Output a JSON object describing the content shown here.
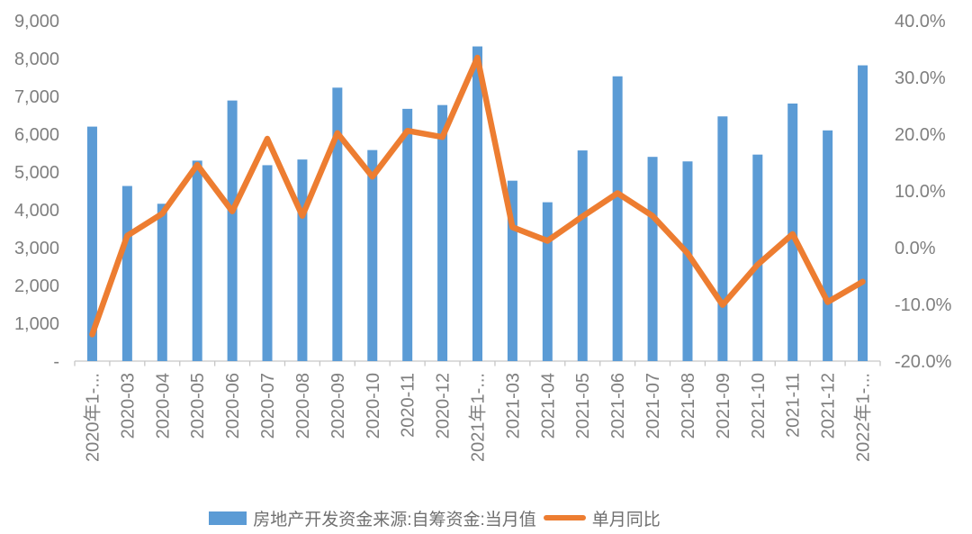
{
  "chart_data": {
    "type": "combo",
    "subtype": "bar+line",
    "categories": [
      "2020年1-...",
      "2020-03",
      "2020-04",
      "2020-05",
      "2020-06",
      "2020-07",
      "2020-08",
      "2020-09",
      "2020-10",
      "2020-11",
      "2020-12",
      "2021年1-...",
      "2021-03",
      "2021-04",
      "2021-05",
      "2021-06",
      "2021-07",
      "2021-08",
      "2021-09",
      "2021-10",
      "2021-11",
      "2021-12",
      "2022年1-..."
    ],
    "series": [
      {
        "name": "房地产开发资金来源:自筹资金:当月值",
        "type": "bar",
        "axis": "left",
        "color": "#5B9BD5",
        "values": [
          6200,
          4630,
          4160,
          5300,
          6890,
          5180,
          5330,
          7230,
          5580,
          6670,
          6770,
          8320,
          4770,
          4200,
          5570,
          7530,
          5400,
          5280,
          6470,
          5460,
          6810,
          6100,
          7820
        ]
      },
      {
        "name": "单月同比",
        "type": "line",
        "axis": "right",
        "color": "#ED7D31",
        "unit": "%",
        "values": [
          -15.3,
          2.1,
          6.0,
          14.6,
          6.4,
          19.2,
          5.6,
          20.2,
          12.5,
          20.6,
          19.5,
          33.5,
          3.6,
          1.2,
          5.5,
          9.6,
          5.6,
          -1.0,
          -10.1,
          -3.0,
          2.4,
          -9.6,
          -6.0
        ]
      }
    ],
    "left_axis": {
      "min": 0,
      "max": 9000,
      "step": 1000,
      "tick_labels": [
        "9,000",
        "8,000",
        "7,000",
        "6,000",
        "5,000",
        "4,000",
        "3,000",
        "2,000",
        "1,000",
        "-"
      ]
    },
    "right_axis": {
      "min": -20,
      "max": 40,
      "step": 10,
      "tick_labels": [
        "40.0%",
        "30.0%",
        "20.0%",
        "10.0%",
        "0.0%",
        "-10.0%",
        "-20.0%"
      ]
    },
    "grid": false,
    "legend_position": "bottom",
    "axis_text_color": "#7F7F7F",
    "axis_line_color": "#C6C6C6",
    "x_labels_rotation": -90
  },
  "legend": {
    "bar_label": "房地产开发资金来源:自筹资金:当月值",
    "line_label": "单月同比"
  }
}
